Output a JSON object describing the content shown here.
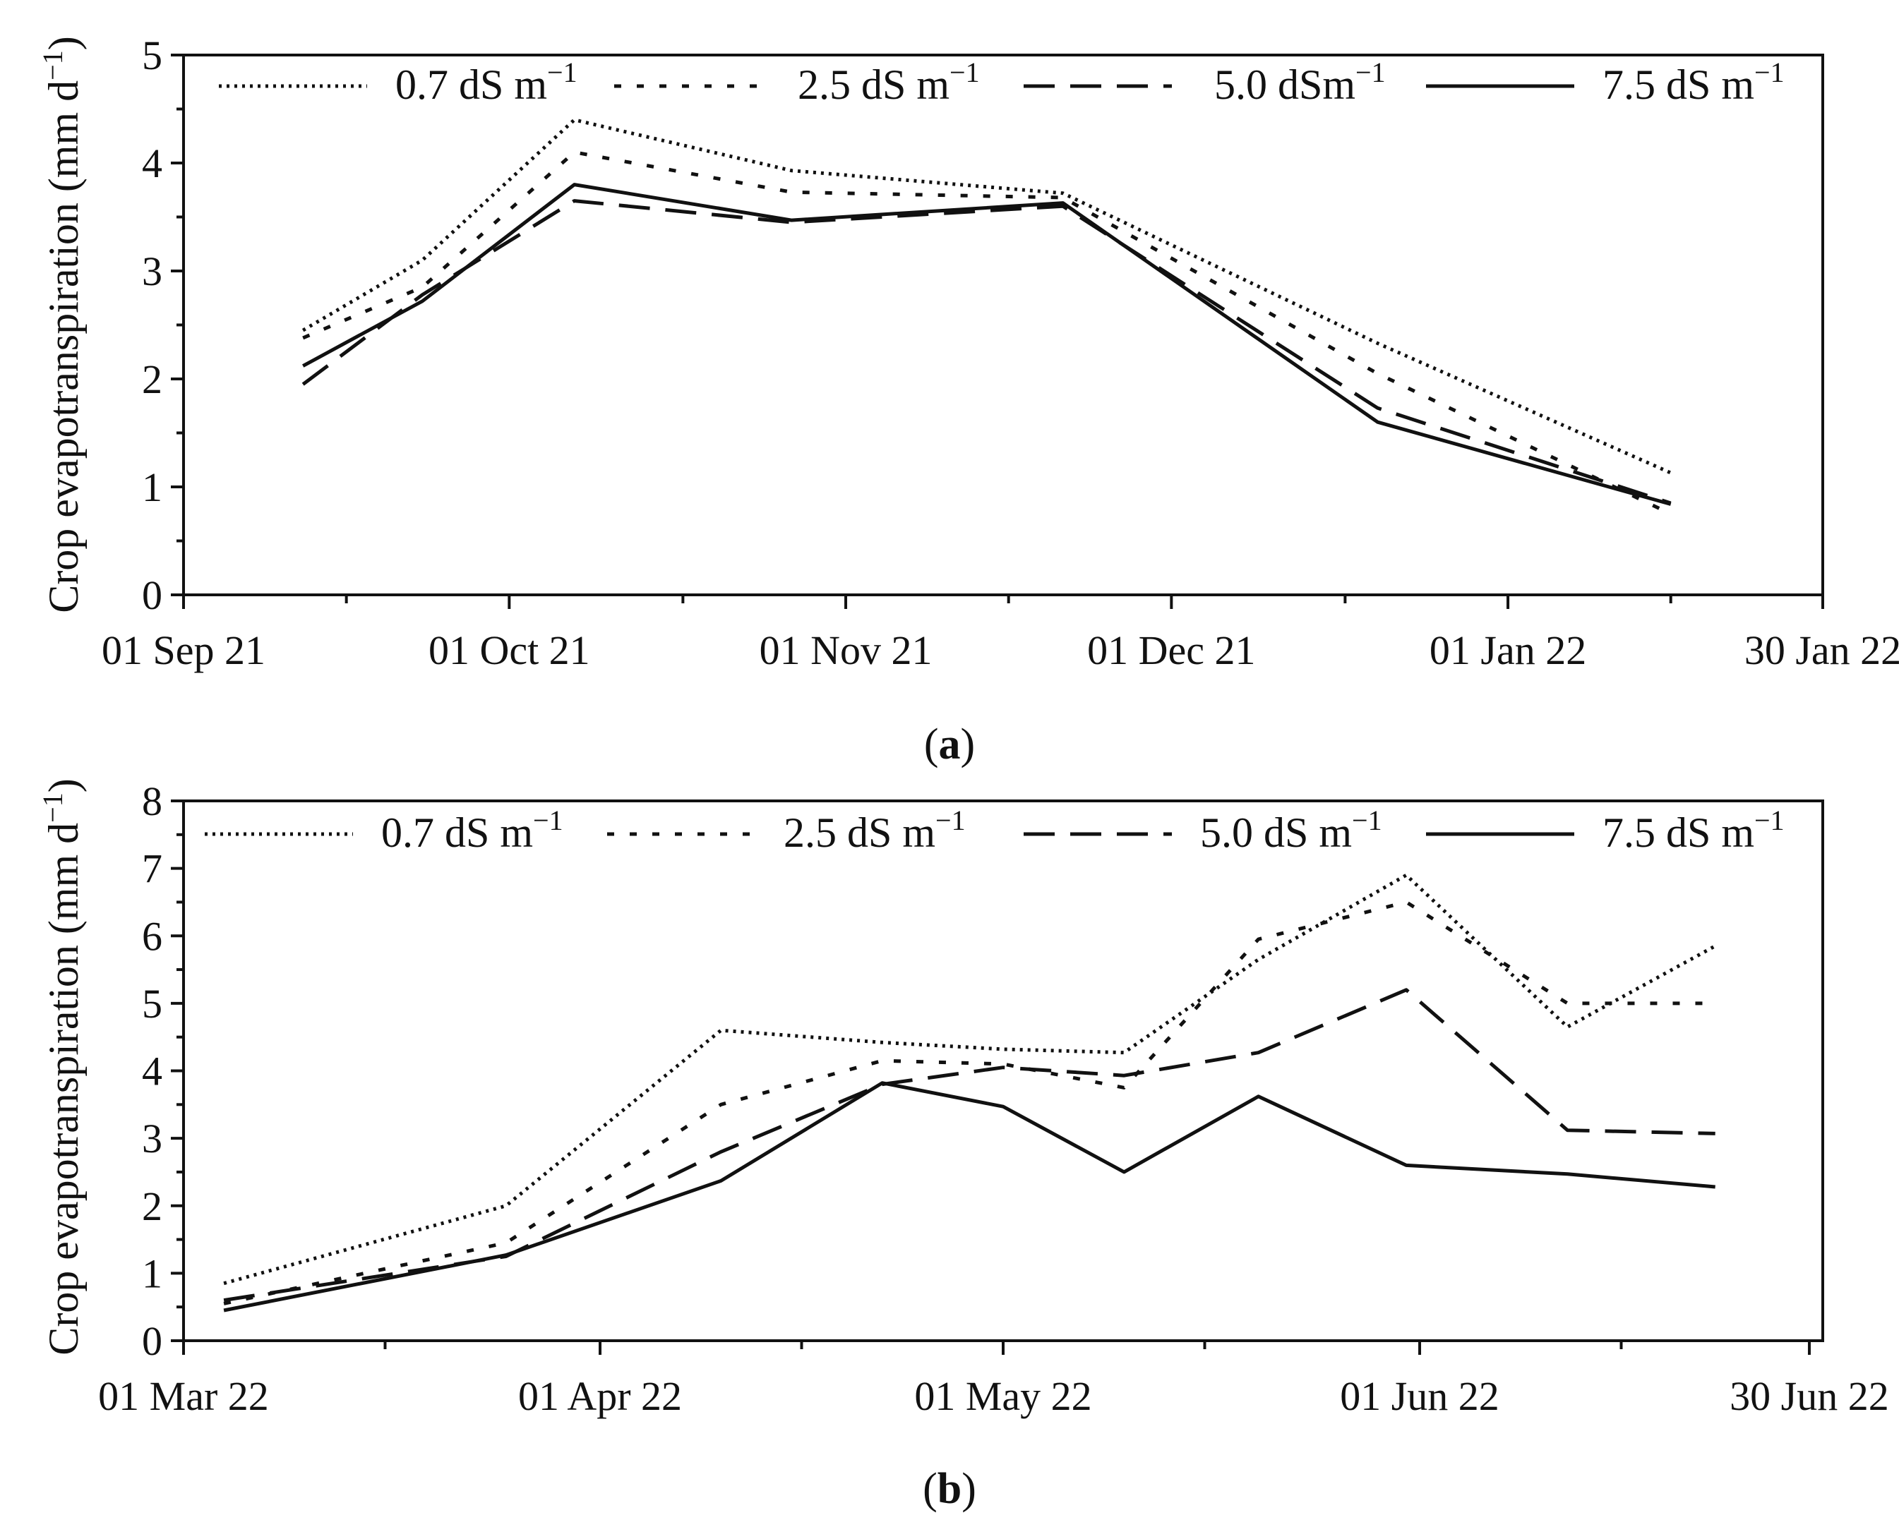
{
  "chart_data": [
    {
      "type": "line",
      "panel_label": "a",
      "ylabel": "Crop evapotranspiration (mm d⁻¹)",
      "ylim": [
        0,
        5
      ],
      "y_ticks": [
        "0",
        "1",
        "2",
        "3",
        "4",
        "5"
      ],
      "xlim": [
        0,
        151
      ],
      "x_ticks": [
        {
          "day": 0,
          "label": "01 Sep 21"
        },
        {
          "day": 30,
          "label": "01 Oct 21"
        },
        {
          "day": 61,
          "label": "01 Nov 21"
        },
        {
          "day": 91,
          "label": "01 Dec 21"
        },
        {
          "day": 122,
          "label": "01 Jan 22"
        },
        {
          "day": 151,
          "label": "30 Jan 22"
        }
      ],
      "x_minor_ticks": [
        15,
        46,
        76,
        107,
        137
      ],
      "legend_position": "top",
      "series": [
        {
          "name": "0.7 dS m⁻¹",
          "label_text": "0.7 dS m",
          "label_sup": "−1",
          "style": "dotted",
          "x": [
            11,
            22,
            36,
            56,
            81,
            110,
            137
          ],
          "values": [
            2.45,
            3.1,
            4.4,
            3.93,
            3.72,
            2.33,
            1.13
          ]
        },
        {
          "name": "2.5 dS m⁻¹",
          "label_text": "2.5 dS m",
          "label_sup": "−1",
          "style": "short-dash",
          "x": [
            11,
            22,
            36,
            56,
            81,
            110,
            137
          ],
          "values": [
            2.38,
            2.85,
            4.1,
            3.73,
            3.68,
            2.05,
            0.75
          ]
        },
        {
          "name": "5.0 dSm⁻¹",
          "label_text": "5.0 dSm",
          "label_sup": "−1",
          "style": "long-dash",
          "x": [
            11,
            22,
            36,
            56,
            81,
            110,
            137
          ],
          "values": [
            1.95,
            2.78,
            3.65,
            3.45,
            3.6,
            1.73,
            0.85
          ]
        },
        {
          "name": "7.5 dS m⁻¹",
          "label_text": "7.5 dS m",
          "label_sup": "−1",
          "style": "solid",
          "x": [
            11,
            22,
            36,
            56,
            81,
            110,
            137
          ],
          "values": [
            2.12,
            2.72,
            3.8,
            3.47,
            3.63,
            1.6,
            0.84
          ]
        }
      ]
    },
    {
      "type": "line",
      "panel_label": "b",
      "ylabel": "Crop evapotranspiration (mm d⁻¹)",
      "ylim": [
        0,
        8
      ],
      "y_ticks": [
        "0",
        "1",
        "2",
        "3",
        "4",
        "5",
        "6",
        "7",
        "8"
      ],
      "xlim": [
        0,
        122
      ],
      "x_ticks": [
        {
          "day": 0,
          "label": "01 Mar 22"
        },
        {
          "day": 31,
          "label": "01 Apr 22"
        },
        {
          "day": 61,
          "label": "01 May 22"
        },
        {
          "day": 92,
          "label": "01 Jun 22"
        },
        {
          "day": 121,
          "label": "30 Jun 22"
        }
      ],
      "x_minor_ticks": [
        15,
        46,
        76,
        107
      ],
      "legend_position": "top",
      "series": [
        {
          "name": "0.7 dS m⁻¹",
          "label_text": "0.7 dS m",
          "label_sup": "−1",
          "style": "dotted",
          "x": [
            3,
            24,
            40,
            52,
            61,
            70,
            80,
            91,
            103,
            114
          ],
          "values": [
            0.85,
            2.0,
            4.6,
            4.42,
            4.32,
            4.27,
            5.65,
            6.9,
            4.65,
            5.85
          ]
        },
        {
          "name": "2.5 dS m⁻¹",
          "label_text": "2.5 dS m",
          "label_sup": "−1",
          "style": "short-dash",
          "x": [
            3,
            24,
            40,
            52,
            61,
            70,
            80,
            91,
            103,
            114
          ],
          "values": [
            0.55,
            1.45,
            3.5,
            4.15,
            4.1,
            3.75,
            5.95,
            6.5,
            5.0,
            5.0
          ]
        },
        {
          "name": "5.0 dS m⁻¹",
          "label_text": "5.0 dS m",
          "label_sup": "−1",
          "style": "long-dash",
          "x": [
            3,
            24,
            40,
            52,
            61,
            70,
            80,
            91,
            103,
            114
          ],
          "values": [
            0.6,
            1.25,
            2.8,
            3.8,
            4.05,
            3.93,
            4.27,
            5.2,
            3.12,
            3.07
          ]
        },
        {
          "name": "7.5 dS m⁻¹",
          "label_text": "7.5 dS m",
          "label_sup": "−1",
          "style": "solid",
          "x": [
            3,
            24,
            40,
            52,
            61,
            70,
            80,
            91,
            103,
            114
          ],
          "values": [
            0.45,
            1.27,
            2.37,
            3.82,
            3.47,
            2.5,
            3.62,
            2.6,
            2.47,
            2.28
          ]
        }
      ]
    }
  ]
}
